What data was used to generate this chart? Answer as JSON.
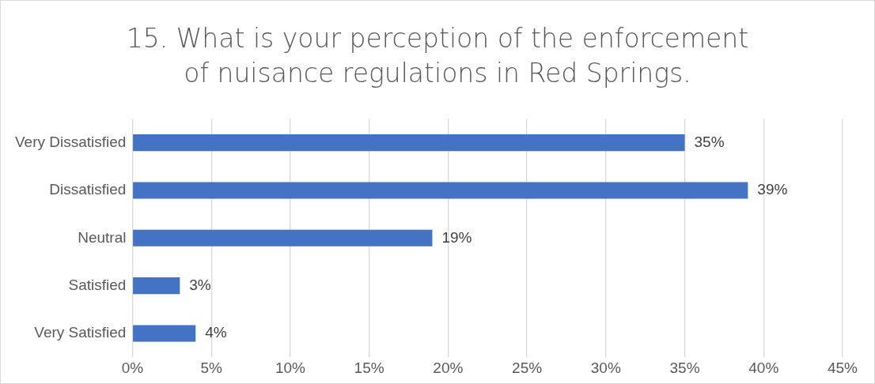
{
  "chart_data": {
    "type": "bar",
    "orientation": "horizontal",
    "title": "15. What is your perception of the enforcement of nuisance regulations in Red Springs.",
    "categories": [
      "Very Dissatisfied",
      "Dissatisfied",
      "Neutral",
      "Satisfied",
      "Very Satisfied"
    ],
    "values": [
      35,
      39,
      19,
      3,
      4
    ],
    "color": "#4472c4",
    "value_labels": [
      "35%",
      "39%",
      "19%",
      "3%",
      "4%"
    ],
    "xlim": [
      0,
      45
    ],
    "xticks": [
      {
        "value": 0,
        "label": "0%"
      },
      {
        "value": 5,
        "label": "5%"
      },
      {
        "value": 10,
        "label": "10%"
      },
      {
        "value": 15,
        "label": "15%"
      },
      {
        "value": 20,
        "label": "20%"
      },
      {
        "value": 25,
        "label": "25%"
      },
      {
        "value": 30,
        "label": "30%"
      },
      {
        "value": 35,
        "label": "35%"
      },
      {
        "value": 40,
        "label": "40%"
      },
      {
        "value": 45,
        "label": "45%"
      }
    ],
    "grid": "x",
    "legend": false
  }
}
